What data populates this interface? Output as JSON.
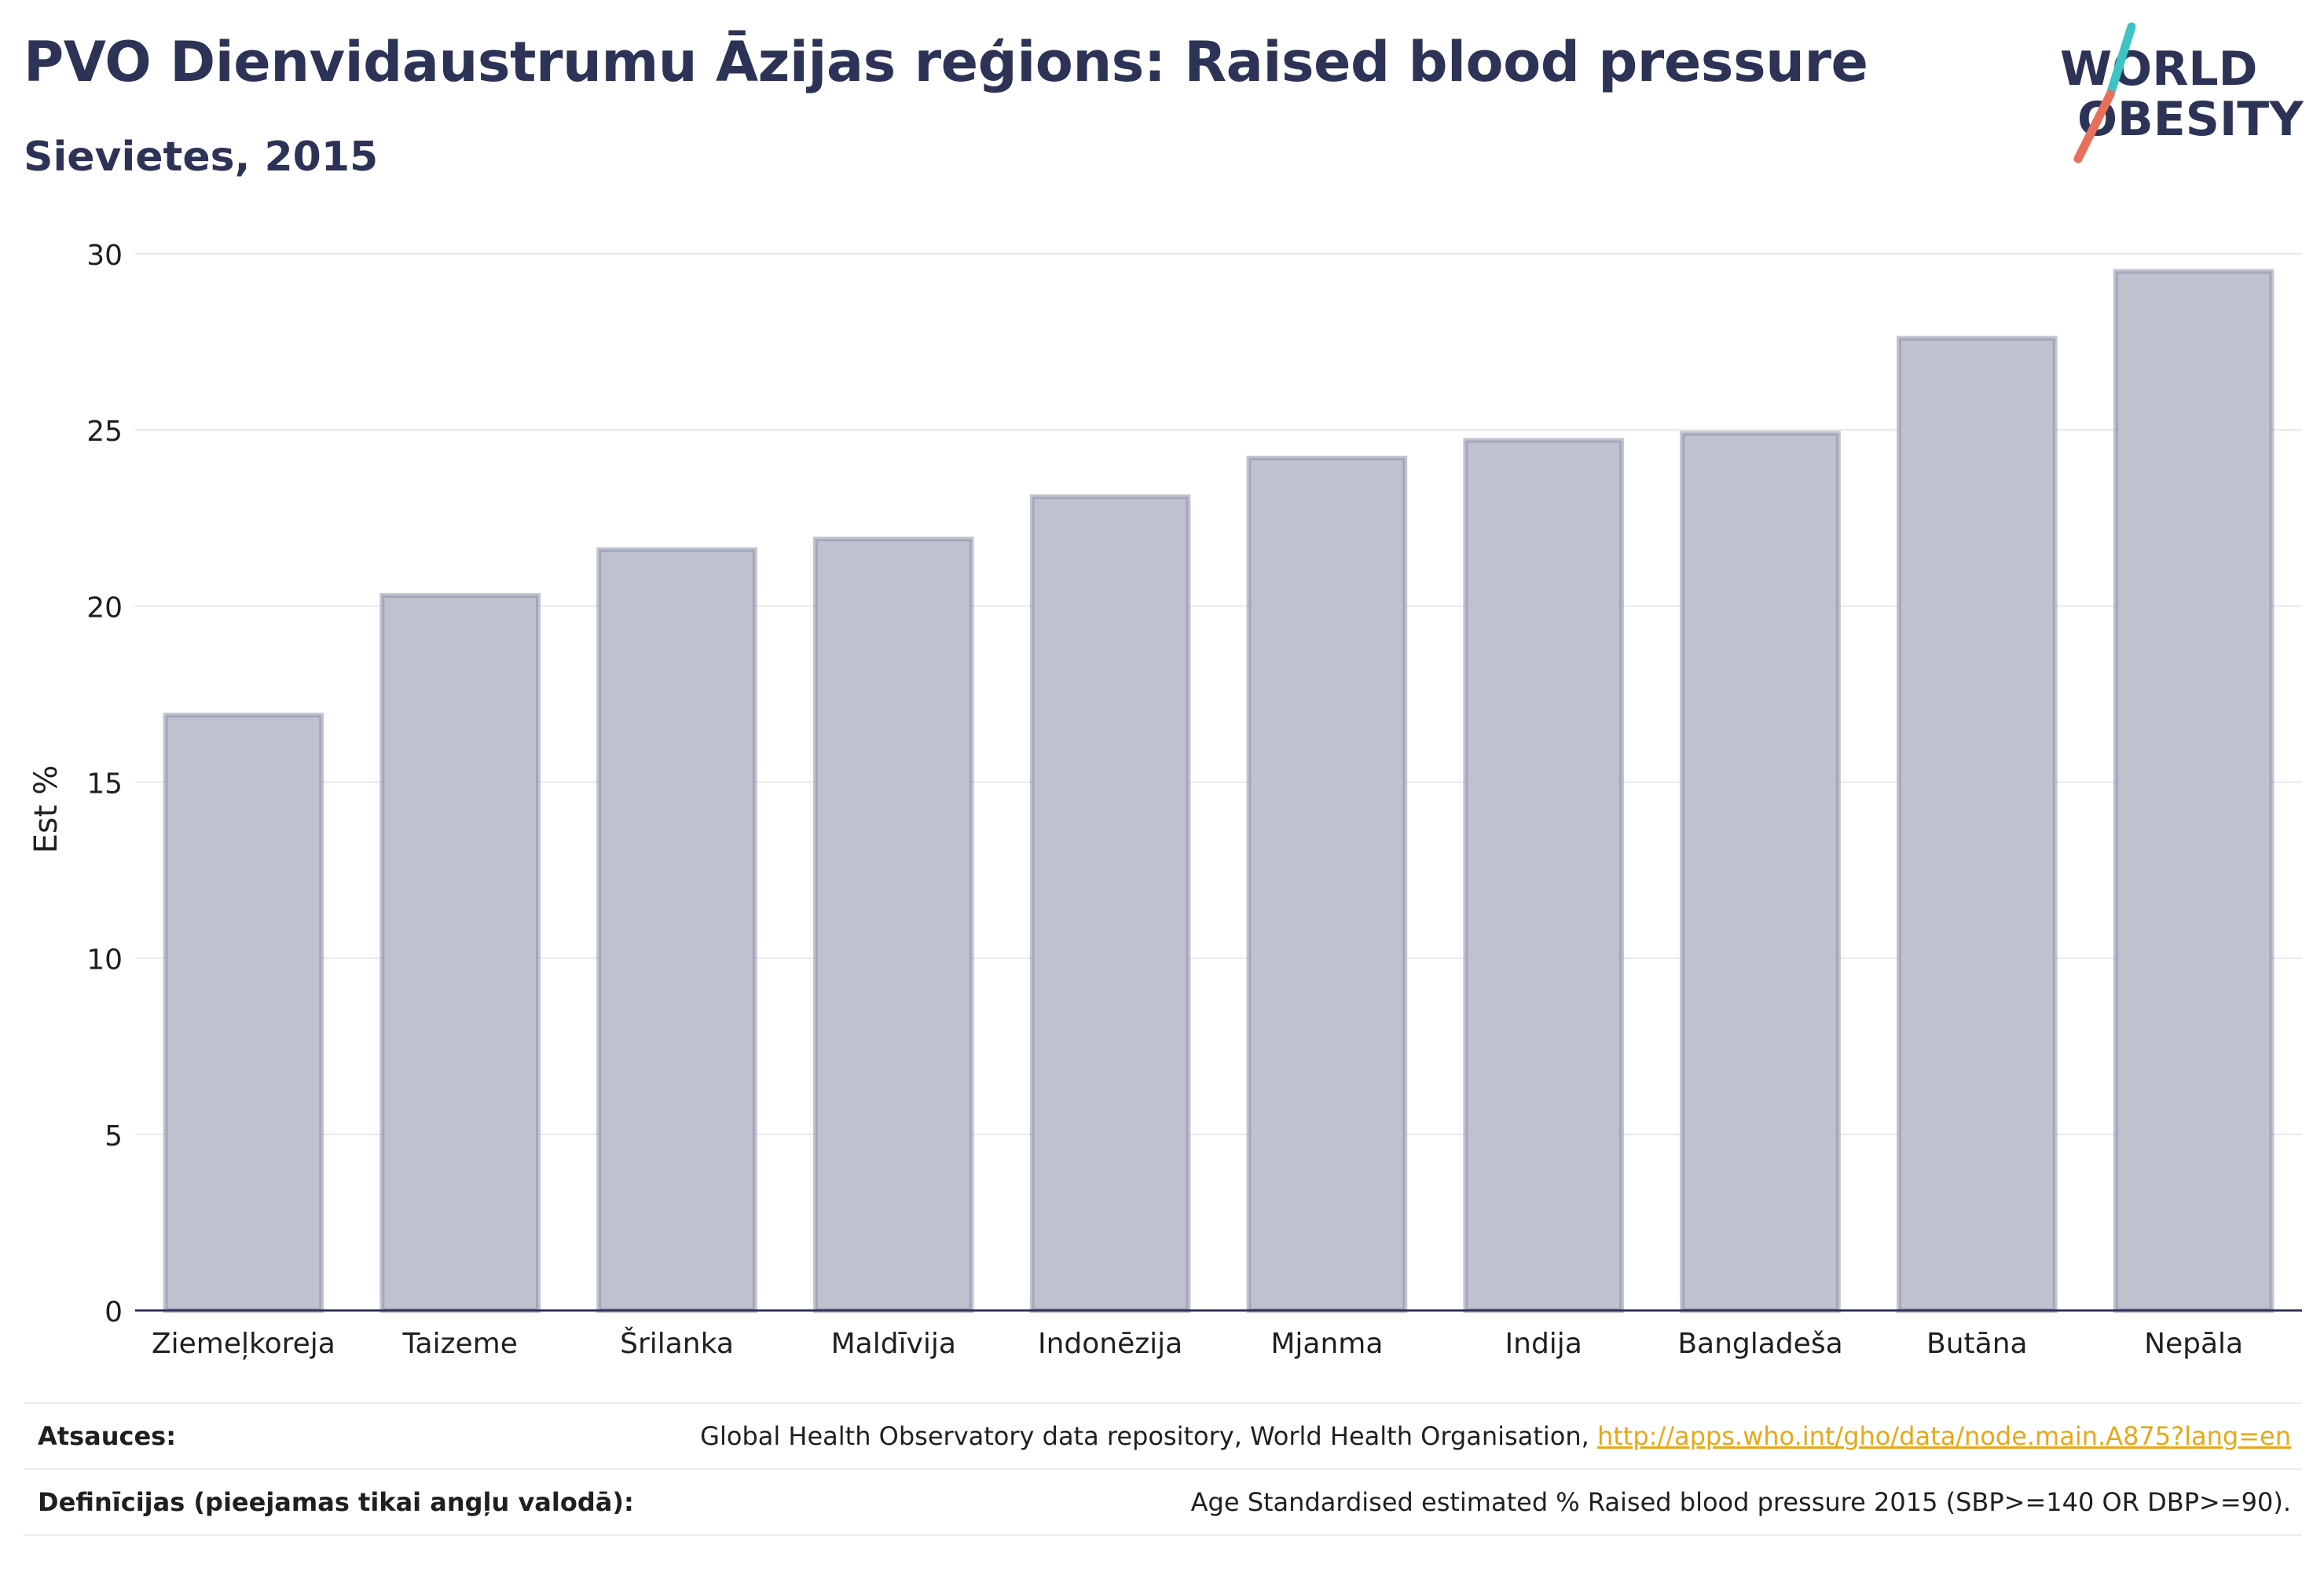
{
  "header": {
    "title": "PVO Dienvidaustrumu Āzijas reģions: Raised blood pressure",
    "subtitle": "Sievietes, 2015"
  },
  "logo": {
    "line1": "WORLD",
    "line2": "OBESITY",
    "colors": {
      "text": "#2d3356",
      "slash_teal": "#3ec4c4",
      "slash_coral": "#e8705a"
    }
  },
  "chart_data": {
    "type": "bar",
    "categories": [
      "Ziemeļkoreja",
      "Taizeme",
      "Šrilanka",
      "Maldīvija",
      "Indonēzija",
      "Mjanma",
      "Indija",
      "Bangladeša",
      "Butāna",
      "Nepāla"
    ],
    "values": [
      16.9,
      20.3,
      21.6,
      21.9,
      23.1,
      24.2,
      24.7,
      24.9,
      27.6,
      29.5
    ],
    "ylabel": "Est %",
    "ylim": [
      0,
      30
    ],
    "yticks": [
      0,
      5,
      10,
      15,
      20,
      25,
      30
    ],
    "grid": true,
    "colors": {
      "bar_fill": "#bfc2ce",
      "bar_stroke": "#8c91aa",
      "axis": "#2d3356",
      "grid": "#e8e8ec"
    }
  },
  "footer": {
    "sources_label": "Atsauces:",
    "sources_text": "Global Health Observatory data repository, World Health Organisation, ",
    "sources_link": "http://apps.who.int/gho/data/node.main.A875?lang=en",
    "definitions_label": "Definīcijas (pieejamas tikai angļu valodā):",
    "definitions_text": "Age Standardised estimated % Raised blood pressure 2015 (SBP>=140 OR DBP>=90)."
  }
}
